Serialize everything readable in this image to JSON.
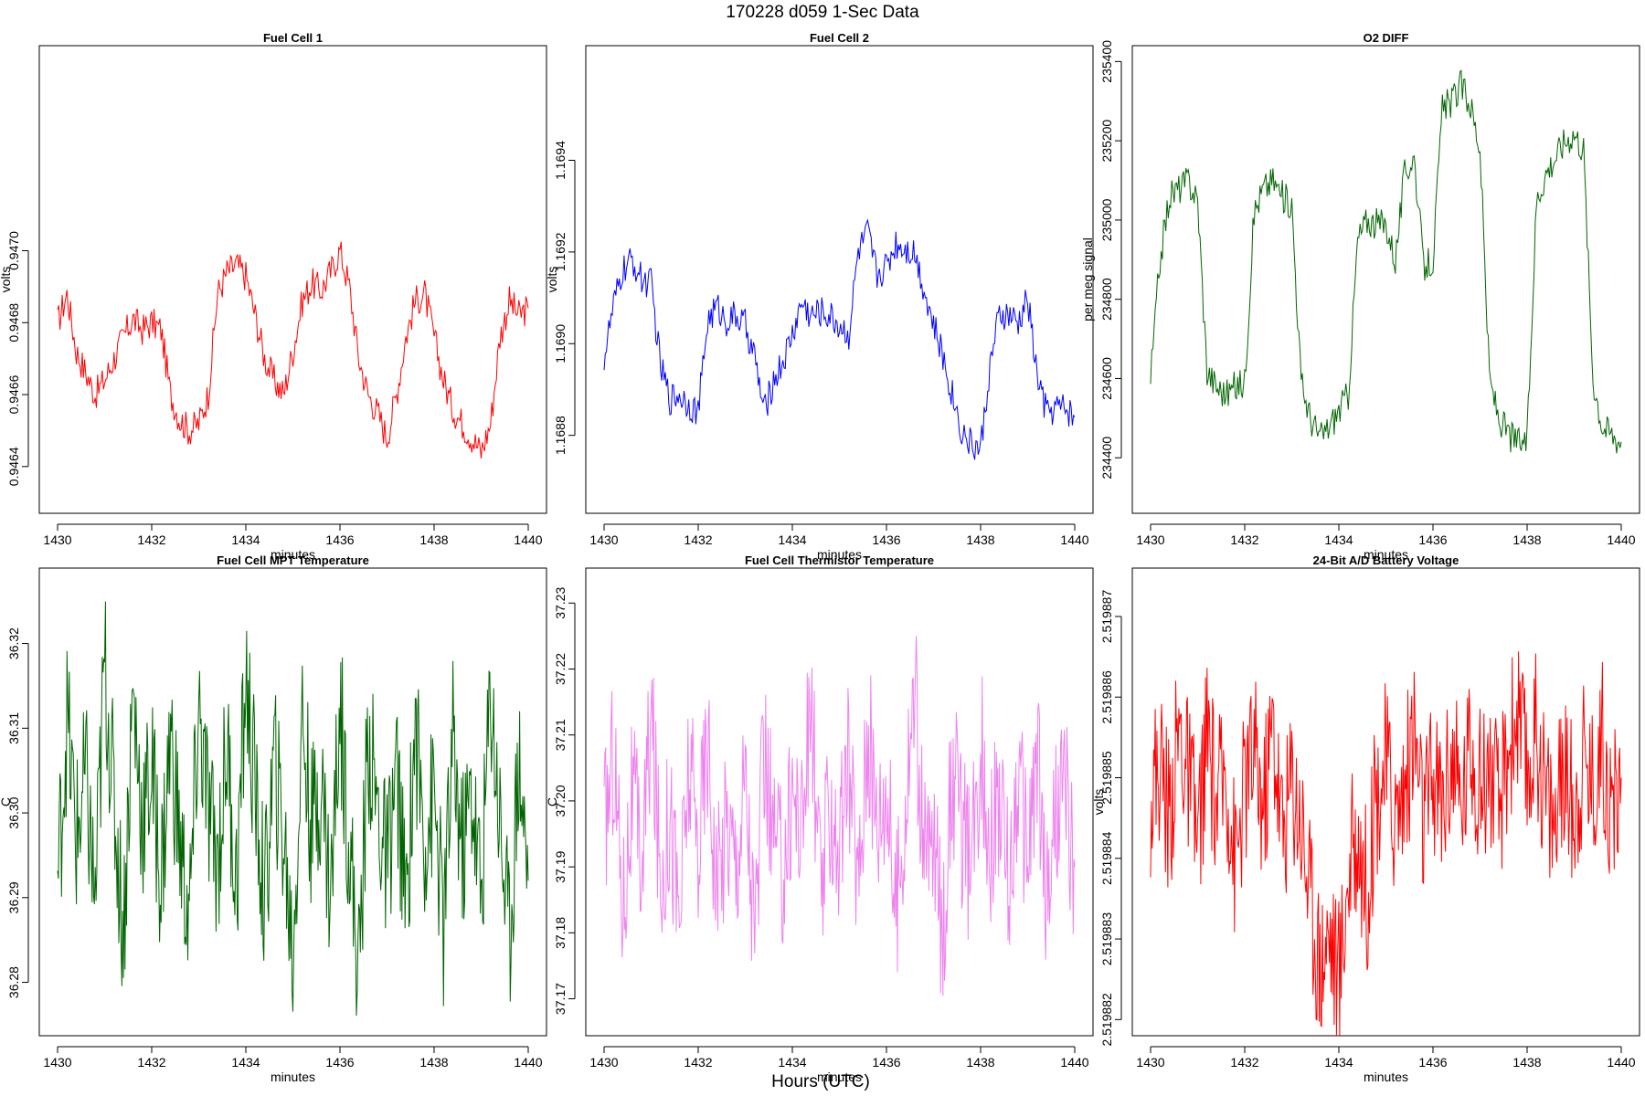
{
  "figure": {
    "suptitle": "170228   d059   1-Sec Data",
    "bottom_label": "Hours (UTC)"
  },
  "chart_data": [
    {
      "type": "line",
      "title": "Fuel Cell 1",
      "xlabel": "minutes",
      "ylabel": "volts",
      "color": "#ff0000",
      "xlim": [
        1430,
        1440
      ],
      "ylim": [
        0.94627,
        0.94757
      ],
      "xticks": [
        1430,
        1432,
        1434,
        1436,
        1438,
        1440
      ],
      "yticks": [
        0.9464,
        0.9466,
        0.9468,
        0.947
      ],
      "ytick_labels": [
        "0.9464",
        "0.9466",
        "0.9468",
        "0.9470"
      ],
      "series": [
        {
          "name": "Fuel Cell 1",
          "x": [
            1430.0,
            1430.2,
            1430.4,
            1430.6,
            1430.8,
            1431.0,
            1431.2,
            1431.4,
            1431.6,
            1431.8,
            1432.0,
            1432.2,
            1432.4,
            1432.6,
            1432.8,
            1433.0,
            1433.2,
            1433.4,
            1433.6,
            1433.8,
            1434.0,
            1434.2,
            1434.4,
            1434.6,
            1434.8,
            1435.0,
            1435.2,
            1435.4,
            1435.6,
            1435.8,
            1436.0,
            1436.2,
            1436.4,
            1436.6,
            1436.8,
            1437.0,
            1437.2,
            1437.4,
            1437.6,
            1437.8,
            1438.0,
            1438.2,
            1438.4,
            1438.6,
            1438.8,
            1439.0,
            1439.2,
            1439.4,
            1439.6,
            1439.8,
            1440.0
          ],
          "y": [
            0.9468,
            0.94688,
            0.94672,
            0.94666,
            0.9466,
            0.94664,
            0.9467,
            0.94676,
            0.94681,
            0.94678,
            0.9468,
            0.94678,
            0.9466,
            0.94653,
            0.9465,
            0.94652,
            0.9466,
            0.94688,
            0.94694,
            0.94696,
            0.94693,
            0.94682,
            0.9467,
            0.94664,
            0.9466,
            0.94672,
            0.94686,
            0.94691,
            0.94689,
            0.94694,
            0.947,
            0.9469,
            0.9467,
            0.9466,
            0.94655,
            0.94648,
            0.9466,
            0.94676,
            0.94686,
            0.94688,
            0.94676,
            0.94664,
            0.94656,
            0.94652,
            0.94648,
            0.94644,
            0.94652,
            0.94676,
            0.94686,
            0.94682,
            0.94684
          ]
        }
      ]
    },
    {
      "type": "line",
      "title": "Fuel Cell 2",
      "xlabel": "minutes",
      "ylabel": "volts",
      "color": "#0000ff",
      "xlim": [
        1430,
        1440
      ],
      "ylim": [
        1.16863,
        1.16965
      ],
      "xticks": [
        1430,
        1432,
        1434,
        1436,
        1438,
        1440
      ],
      "yticks": [
        1.1688,
        1.169,
        1.1692,
        1.1694
      ],
      "ytick_labels": [
        "1.1688",
        "1.1690",
        "1.1692",
        "1.1694"
      ],
      "series": [
        {
          "name": "Fuel Cell 2",
          "x": [
            1430.0,
            1430.2,
            1430.4,
            1430.6,
            1430.8,
            1431.0,
            1431.2,
            1431.4,
            1431.6,
            1431.8,
            1432.0,
            1432.2,
            1432.4,
            1432.6,
            1432.8,
            1433.0,
            1433.2,
            1433.4,
            1433.6,
            1433.8,
            1434.0,
            1434.2,
            1434.4,
            1434.6,
            1434.8,
            1435.0,
            1435.2,
            1435.4,
            1435.6,
            1435.8,
            1436.0,
            1436.2,
            1436.4,
            1436.6,
            1436.8,
            1437.0,
            1437.2,
            1437.4,
            1437.6,
            1437.8,
            1438.0,
            1438.2,
            1438.4,
            1438.6,
            1438.8,
            1439.0,
            1439.2,
            1439.4,
            1439.6,
            1439.8,
            1440.0
          ],
          "y": [
            1.16897,
            1.16908,
            1.16916,
            1.16918,
            1.16914,
            1.16913,
            1.16895,
            1.16888,
            1.16889,
            1.16887,
            1.16885,
            1.16905,
            1.16908,
            1.16905,
            1.16906,
            1.16904,
            1.16897,
            1.16885,
            1.16892,
            1.16896,
            1.16902,
            1.16909,
            1.16906,
            1.16907,
            1.16906,
            1.16904,
            1.16902,
            1.1692,
            1.16924,
            1.16915,
            1.16917,
            1.16922,
            1.16921,
            1.1692,
            1.16912,
            1.16904,
            1.16897,
            1.16889,
            1.16881,
            1.16878,
            1.16877,
            1.16895,
            1.16906,
            1.16906,
            1.16904,
            1.1691,
            1.16893,
            1.16885,
            1.16886,
            1.16886,
            1.16884
          ]
        }
      ]
    },
    {
      "type": "line",
      "title": "O2 DIFF",
      "xlabel": "minutes",
      "ylabel": "per meg signal",
      "color": "#006400",
      "xlim": [
        1430,
        1440
      ],
      "ylim": [
        234260,
        235440
      ],
      "xticks": [
        1430,
        1432,
        1434,
        1436,
        1438,
        1440
      ],
      "yticks": [
        234400,
        234600,
        234800,
        235000,
        235200,
        235400
      ],
      "ytick_labels": [
        "234400",
        "234600",
        "234800",
        "235000",
        "235200",
        "235400"
      ],
      "series": [
        {
          "name": "O2 DIFF",
          "x": [
            1430.0,
            1430.2,
            1430.4,
            1430.6,
            1430.8,
            1431.0,
            1431.2,
            1431.4,
            1431.6,
            1431.8,
            1432.0,
            1432.2,
            1432.4,
            1432.6,
            1432.8,
            1433.0,
            1433.2,
            1433.4,
            1433.6,
            1433.8,
            1434.0,
            1434.2,
            1434.4,
            1434.6,
            1434.8,
            1435.0,
            1435.2,
            1435.4,
            1435.6,
            1435.8,
            1436.0,
            1436.2,
            1436.4,
            1436.6,
            1436.8,
            1437.0,
            1437.2,
            1437.4,
            1437.6,
            1437.8,
            1438.0,
            1438.2,
            1438.4,
            1438.6,
            1438.8,
            1439.0,
            1439.2,
            1439.4,
            1439.6,
            1439.8,
            1440.0
          ],
          "y": [
            234600,
            234900,
            235060,
            235080,
            235100,
            235050,
            234620,
            234580,
            234560,
            234580,
            234590,
            235020,
            235080,
            235100,
            235060,
            235040,
            234590,
            234500,
            234450,
            234480,
            234520,
            234560,
            234950,
            235000,
            234990,
            234990,
            234900,
            235120,
            235160,
            234880,
            234900,
            235280,
            235300,
            235340,
            235290,
            235180,
            234600,
            234500,
            234460,
            234440,
            234440,
            235050,
            235120,
            235160,
            235200,
            235220,
            235180,
            234600,
            234480,
            234460,
            234440
          ]
        }
      ]
    },
    {
      "type": "line",
      "title": "Fuel Cell MPT Temperature",
      "xlabel": "minutes",
      "ylabel": "C",
      "color": "#006400",
      "xlim": [
        1430,
        1440
      ],
      "ylim": [
        36.2737,
        36.3289
      ],
      "xticks": [
        1430,
        1432,
        1434,
        1436,
        1438,
        1440
      ],
      "yticks": [
        36.28,
        36.29,
        36.3,
        36.31,
        36.32
      ],
      "ytick_labels": [
        "36.28",
        "36.29",
        "36.30",
        "36.31",
        "36.32"
      ],
      "series": [
        {
          "name": "Fuel Cell MPT Temperature",
          "x": [
            1430.0,
            1430.2,
            1430.4,
            1430.6,
            1430.8,
            1431.0,
            1431.2,
            1431.4,
            1431.6,
            1431.8,
            1432.0,
            1432.2,
            1432.4,
            1432.6,
            1432.8,
            1433.0,
            1433.2,
            1433.4,
            1433.6,
            1433.8,
            1434.0,
            1434.2,
            1434.4,
            1434.6,
            1434.8,
            1435.0,
            1435.2,
            1435.4,
            1435.6,
            1435.8,
            1436.0,
            1436.2,
            1436.4,
            1436.6,
            1436.8,
            1437.0,
            1437.2,
            1437.4,
            1437.6,
            1437.8,
            1438.0,
            1438.2,
            1438.4,
            1438.6,
            1438.8,
            1439.0,
            1439.2,
            1439.4,
            1439.6,
            1439.8,
            1440.0
          ],
          "y": [
            36.292,
            36.311,
            36.297,
            36.304,
            36.289,
            36.318,
            36.301,
            36.286,
            36.314,
            36.299,
            36.305,
            36.292,
            36.309,
            36.296,
            36.287,
            36.312,
            36.3,
            36.294,
            36.308,
            36.291,
            36.316,
            36.302,
            36.289,
            36.306,
            36.297,
            36.283,
            36.311,
            36.298,
            36.304,
            36.29,
            36.313,
            36.296,
            36.281,
            36.309,
            36.3,
            36.293,
            36.305,
            36.288,
            36.31,
            36.297,
            36.302,
            36.286,
            36.308,
            36.295,
            36.303,
            36.29,
            36.315,
            36.299,
            36.285,
            36.307,
            36.292
          ]
        }
      ]
    },
    {
      "type": "line",
      "title": "Fuel Cell Thermistor Temperature",
      "xlabel": "minutes",
      "ylabel": "C",
      "color": "#ee82ee",
      "xlim": [
        1430,
        1440
      ],
      "ylim": [
        37.1644,
        37.2353
      ],
      "xticks": [
        1430,
        1432,
        1434,
        1436,
        1438,
        1440
      ],
      "yticks": [
        37.17,
        37.18,
        37.19,
        37.2,
        37.21,
        37.22,
        37.23
      ],
      "ytick_labels": [
        "37.17",
        "37.18",
        "37.19",
        "37.20",
        "37.21",
        "37.22",
        "37.23"
      ],
      "series": [
        {
          "name": "Fuel Cell Thermistor Temperature",
          "x": [
            1430.0,
            1430.2,
            1430.4,
            1430.6,
            1430.8,
            1431.0,
            1431.2,
            1431.4,
            1431.6,
            1431.8,
            1432.0,
            1432.2,
            1432.4,
            1432.6,
            1432.8,
            1433.0,
            1433.2,
            1433.4,
            1433.6,
            1433.8,
            1434.0,
            1434.2,
            1434.4,
            1434.6,
            1434.8,
            1435.0,
            1435.2,
            1435.4,
            1435.6,
            1435.8,
            1436.0,
            1436.2,
            1436.4,
            1436.6,
            1436.8,
            1437.0,
            1437.2,
            1437.4,
            1437.6,
            1437.8,
            1438.0,
            1438.2,
            1438.4,
            1438.6,
            1438.8,
            1439.0,
            1439.2,
            1439.4,
            1439.6,
            1439.8,
            1440.0
          ],
          "y": [
            37.195,
            37.208,
            37.184,
            37.201,
            37.19,
            37.213,
            37.188,
            37.199,
            37.182,
            37.205,
            37.193,
            37.21,
            37.186,
            37.198,
            37.191,
            37.204,
            37.179,
            37.207,
            37.194,
            37.189,
            37.202,
            37.196,
            37.215,
            37.185,
            37.2,
            37.192,
            37.206,
            37.187,
            37.211,
            37.197,
            37.203,
            37.183,
            37.199,
            37.218,
            37.19,
            37.194,
            37.18,
            37.205,
            37.196,
            37.188,
            37.209,
            37.193,
            37.201,
            37.186,
            37.204,
            37.191,
            37.207,
            37.184,
            37.198,
            37.202,
            37.19
          ]
        }
      ]
    },
    {
      "type": "line",
      "title": "24-Bit A/D Battery Voltage",
      "xlabel": "minutes",
      "ylabel": "volts",
      "color": "#ff0000",
      "xlim": [
        1430,
        1440
      ],
      "ylim": [
        2.5198818,
        2.5198876
      ],
      "xticks": [
        1430,
        1432,
        1434,
        1436,
        1438,
        1440
      ],
      "yticks": [
        2.519882,
        2.519883,
        2.519884,
        2.519885,
        2.519886,
        2.519887
      ],
      "ytick_labels": [
        "2.519882",
        "2.519883",
        "2.519884",
        "2.519885",
        "2.519886",
        "2.519887"
      ],
      "series": [
        {
          "name": "24-Bit A/D Battery Voltage",
          "x": [
            1430.0,
            1430.2,
            1430.4,
            1430.6,
            1430.8,
            1431.0,
            1431.2,
            1431.4,
            1431.6,
            1431.8,
            1432.0,
            1432.2,
            1432.4,
            1432.6,
            1432.8,
            1433.0,
            1433.2,
            1433.4,
            1433.6,
            1433.8,
            1434.0,
            1434.2,
            1434.4,
            1434.6,
            1434.8,
            1435.0,
            1435.2,
            1435.4,
            1435.6,
            1435.8,
            1436.0,
            1436.2,
            1436.4,
            1436.6,
            1436.8,
            1437.0,
            1437.2,
            1437.4,
            1437.6,
            1437.8,
            1438.0,
            1438.2,
            1438.4,
            1438.6,
            1438.8,
            1439.0,
            1439.2,
            1439.4,
            1439.6,
            1439.8,
            1440.0
          ],
          "y": [
            2.5198848,
            2.5198852,
            2.5198845,
            2.5198856,
            2.519885,
            2.5198842,
            2.5198855,
            2.5198846,
            2.5198851,
            2.5198839,
            2.5198849,
            2.5198853,
            2.5198846,
            2.5198857,
            2.5198843,
            2.519885,
            2.5198845,
            2.5198835,
            2.5198827,
            2.5198831,
            2.5198825,
            2.5198838,
            2.5198843,
            2.5198836,
            2.5198848,
            2.5198852,
            2.5198845,
            2.5198849,
            2.5198856,
            2.5198844,
            2.519885,
            2.5198847,
            2.5198853,
            2.5198846,
            2.5198855,
            2.5198849,
            2.5198852,
            2.5198845,
            2.5198854,
            2.5198858,
            2.519885,
            2.5198856,
            2.5198848,
            2.5198844,
            2.5198851,
            2.5198846,
            2.5198853,
            2.5198849,
            2.5198855,
            2.5198845,
            2.519885
          ]
        }
      ]
    }
  ]
}
